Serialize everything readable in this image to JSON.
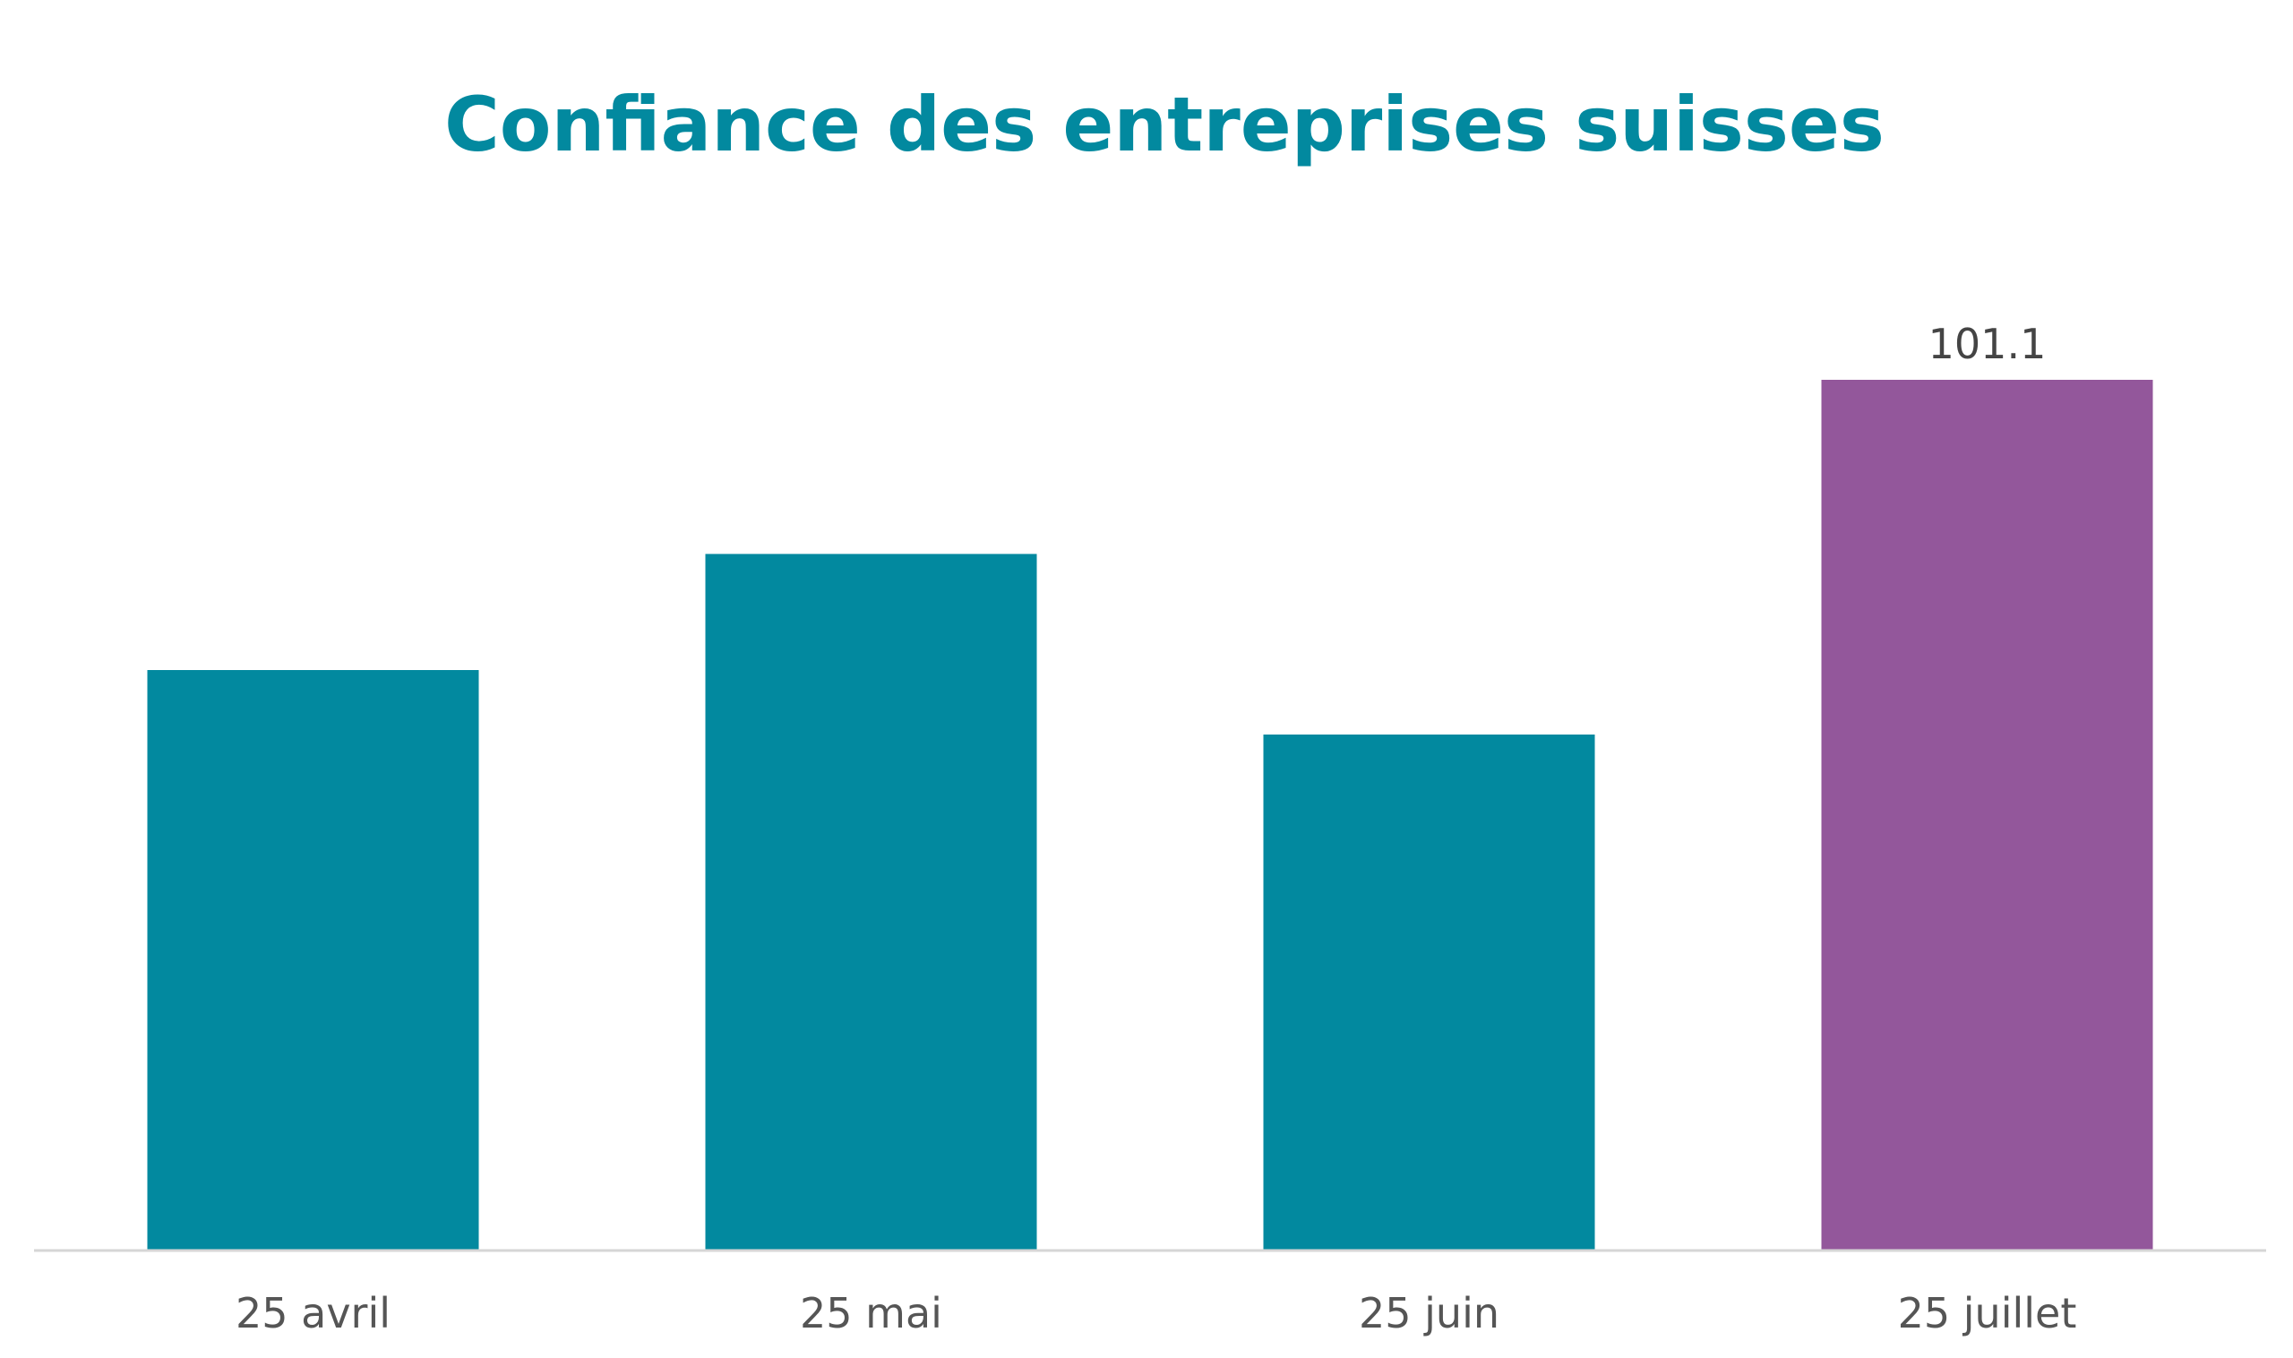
{
  "chart_data": {
    "type": "bar",
    "title": "Confiance des entreprises suisses",
    "xlabel": "",
    "ylabel": "",
    "categories": [
      "25 avril",
      "25 mai",
      "25 juin",
      "25 juillet"
    ],
    "values": [
      96.6,
      98.4,
      95.6,
      101.1
    ],
    "data_labels": [
      "",
      "",
      "",
      "101.1"
    ],
    "ylim": [
      87.6,
      102.2
    ],
    "grid": false,
    "legend": "none",
    "colors": {
      "default_bar": "#02899f",
      "highlight_bar": "#93579b",
      "title": "#02899f"
    },
    "highlight_index": 3
  }
}
